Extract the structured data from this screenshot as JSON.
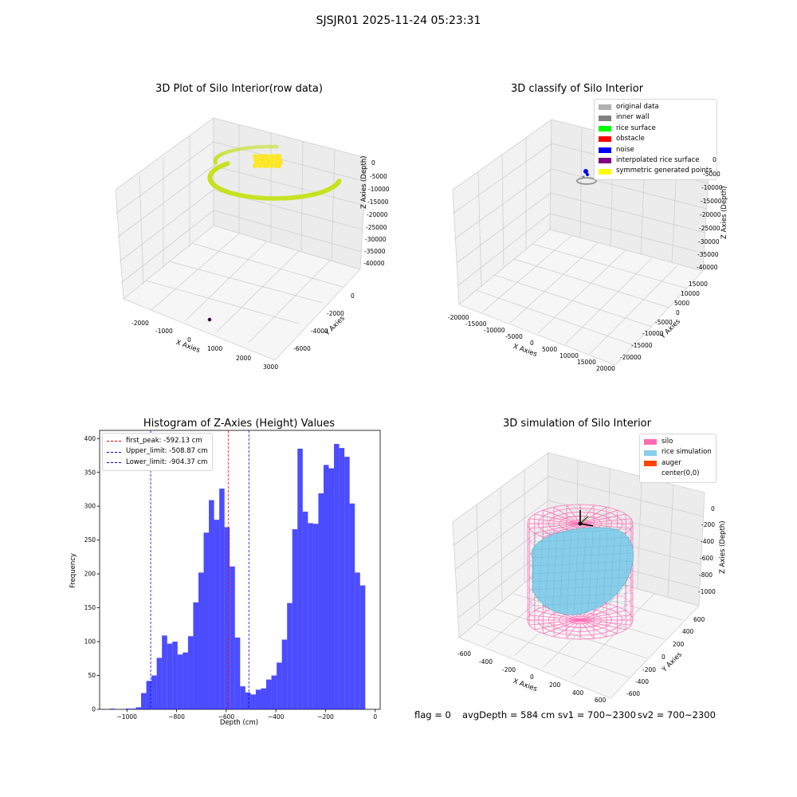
{
  "suptitle": "SJSJR01 2025-11-24 05:23:31",
  "panels": {
    "raw": {
      "title": "3D Plot of Silo Interior(row data)",
      "xlabel": "X Axies",
      "ylabel": "Y Axies",
      "zlabel": "Z Axies (Depth)",
      "xticks": [
        "-2000",
        "-1000",
        "0",
        "1000",
        "2000",
        "3000"
      ],
      "yticks": [
        "-6000",
        "-4000",
        "-2000",
        "0"
      ],
      "zticks": [
        "0",
        "-5000",
        "-10000",
        "-15000",
        "-20000",
        "-25000",
        "-30000",
        "-35000",
        "-40000"
      ]
    },
    "classify": {
      "title": "3D classify of Silo Interior",
      "xlabel": "X Axies",
      "ylabel": "Y Axies",
      "zlabel": "Z Axies (Depth)",
      "xticks": [
        "-20000",
        "-15000",
        "-10000",
        "-5000",
        "0",
        "5000",
        "10000",
        "15000",
        "20000"
      ],
      "yticks": [
        "-20000",
        "-15000",
        "-10000",
        "-5000",
        "0",
        "5000",
        "10000",
        "15000"
      ],
      "zticks": [
        "0",
        "-5000",
        "-10000",
        "-15000",
        "-20000",
        "-25000",
        "-30000",
        "-35000",
        "-40000"
      ],
      "legend": [
        {
          "label": "original data",
          "color": "#b0b0b0"
        },
        {
          "label": "inner wall",
          "color": "#808080"
        },
        {
          "label": "rice surface",
          "color": "#00ff00"
        },
        {
          "label": "obstacle",
          "color": "#ff0000"
        },
        {
          "label": "noise",
          "color": "#0000ff"
        },
        {
          "label": "interpolated rice surface",
          "color": "#800080"
        },
        {
          "label": "symmetric generated points",
          "color": "#ffff00"
        }
      ]
    },
    "simulation": {
      "title": "3D simulation of Silo Interior",
      "xlabel": "X Axies",
      "ylabel": "Y Axies",
      "zlabel": "Z Axies (Depth)",
      "xticks": [
        "-600",
        "-400",
        "-200",
        "0",
        "200",
        "400",
        "600"
      ],
      "yticks": [
        "-600",
        "-400",
        "-200",
        "0",
        "200",
        "400",
        "600"
      ],
      "zticks": [
        "0",
        "-200",
        "-400",
        "-600",
        "-800",
        "-1000"
      ],
      "legend": [
        {
          "label": "silo",
          "color": "#ff69b4"
        },
        {
          "label": "rice simulation",
          "color": "#87ceeb"
        },
        {
          "label": "auger",
          "color": "#ff4500"
        },
        {
          "label": "center(0,0)",
          "color": ""
        }
      ]
    }
  },
  "chart_data": {
    "type": "bar",
    "title": "Histogram of Z-Axies (Height) Values",
    "xlabel": "Depth (cm)",
    "ylabel": "Frequency",
    "bar_color": "#0000ff",
    "bin_start": -1090,
    "bin_width": 21,
    "counts": [
      0,
      1,
      0,
      0,
      1,
      1,
      3,
      24,
      42,
      50,
      76,
      109,
      97,
      100,
      81,
      84,
      108,
      158,
      202,
      261,
      309,
      280,
      326,
      269,
      211,
      106,
      34,
      25,
      22,
      29,
      31,
      44,
      50,
      69,
      103,
      157,
      266,
      385,
      292,
      275,
      274,
      319,
      361,
      356,
      392,
      386,
      373,
      304,
      202,
      183
    ],
    "xlim": [
      -1110,
      20
    ],
    "ylim": [
      0,
      412
    ],
    "xticks": [
      -1000,
      -800,
      -600,
      -400,
      -200,
      0
    ],
    "yticks": [
      0,
      50,
      100,
      150,
      200,
      250,
      300,
      350,
      400
    ],
    "lines": [
      {
        "label": "first_peak: -592.13 cm",
        "x": -592.13,
        "color": "#ff0000"
      },
      {
        "label": "Upper_limit: -508.87 cm",
        "x": -508.87,
        "color": "#0000ff"
      },
      {
        "label": "Lower_limit: -904.37 cm",
        "x": -904.37,
        "color": "#0000ff"
      }
    ]
  },
  "footer": {
    "flag": "flag = 0",
    "avg": "avgDepth = 584 cm",
    "sv1": "sv1 = 700~2300",
    "sv2": "sv2 = 700~2300"
  }
}
